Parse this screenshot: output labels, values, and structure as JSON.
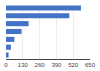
{
  "chart_data": {
    "type": "bar",
    "orientation": "horizontal",
    "categories": [
      null,
      null,
      null,
      null,
      null,
      null,
      null
    ],
    "values": [
      580,
      490,
      175,
      120,
      65,
      38,
      20
    ],
    "color": "#4472c4",
    "xlim": [
      0,
      650
    ],
    "xticks": [
      0,
      130,
      260,
      390,
      520,
      650
    ],
    "grid": true,
    "tick_labels": "x"
  }
}
